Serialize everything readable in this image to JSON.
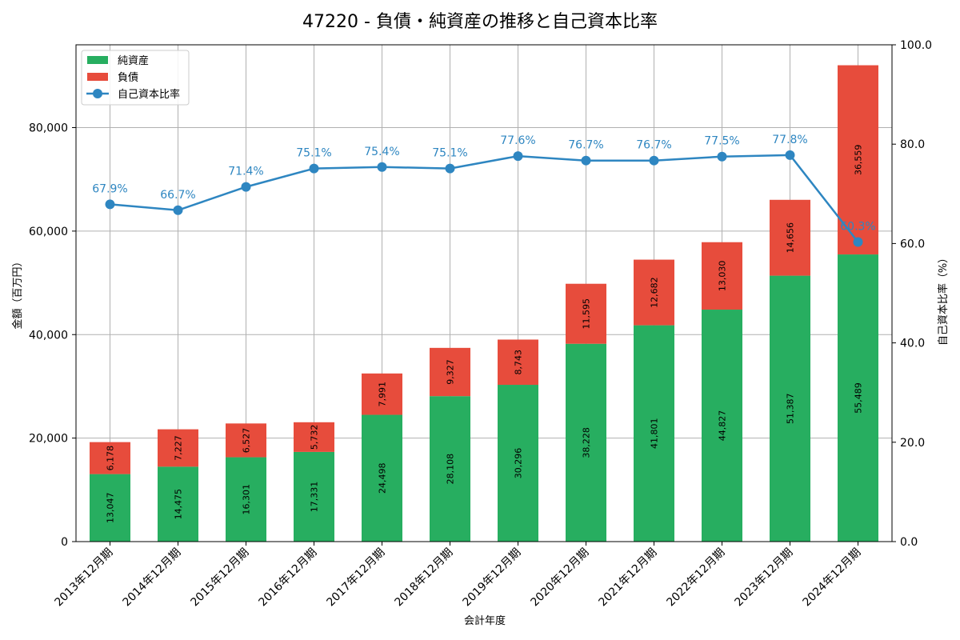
{
  "chart_data": {
    "type": "bar",
    "title": "47220 - 負債・純資産の推移と自己資本比率",
    "xlabel": "会計年度",
    "ylabel": "金額（百万円）",
    "y2label": "自己資本比率（%）",
    "categories": [
      "2013年12月期",
      "2014年12月期",
      "2015年12月期",
      "2016年12月期",
      "2017年12月期",
      "2018年12月期",
      "2019年12月期",
      "2020年12月期",
      "2021年12月期",
      "2022年12月期",
      "2023年12月期",
      "2024年12月期"
    ],
    "series": [
      {
        "name": "純資産",
        "type": "bar",
        "stacked": true,
        "color": "#27ae60",
        "values": [
          13047,
          14475,
          16301,
          17331,
          24498,
          28108,
          30296,
          38228,
          41801,
          44827,
          51387,
          55489
        ],
        "labels": [
          "13,047",
          "14,475",
          "16,301",
          "17,331",
          "24,498",
          "28,108",
          "30,296",
          "38,228",
          "41,801",
          "44,827",
          "51,387",
          "55,489"
        ]
      },
      {
        "name": "負債",
        "type": "bar",
        "stacked": true,
        "color": "#e74c3c",
        "values": [
          6178,
          7227,
          6527,
          5732,
          7991,
          9327,
          8743,
          11595,
          12682,
          13030,
          14656,
          36559
        ],
        "labels": [
          "6,178",
          "7,227",
          "6,527",
          "5,732",
          "7,991",
          "9,327",
          "8,743",
          "11,595",
          "12,682",
          "13,030",
          "14,656",
          "36,559"
        ]
      },
      {
        "name": "自己資本比率",
        "type": "line",
        "axis": "right",
        "color": "#2e86c1",
        "values": [
          67.9,
          66.7,
          71.4,
          75.1,
          75.4,
          75.1,
          77.6,
          76.7,
          76.7,
          77.5,
          77.8,
          60.3
        ],
        "labels": [
          "67.9%",
          "66.7%",
          "71.4%",
          "75.1%",
          "75.4%",
          "75.1%",
          "77.6%",
          "76.7%",
          "76.7%",
          "77.5%",
          "77.8%",
          "60.3%"
        ]
      }
    ],
    "ylim": [
      0,
      96000
    ],
    "yticks": [
      0,
      20000,
      40000,
      60000,
      80000
    ],
    "ytick_labels": [
      "0",
      "20,000",
      "40,000",
      "60,000",
      "80,000"
    ],
    "y2lim": [
      0,
      100
    ],
    "y2ticks": [
      0,
      20,
      40,
      60,
      80,
      100
    ],
    "y2tick_labels": [
      "0.0",
      "20.0",
      "40.0",
      "60.0",
      "80.0",
      "100.0"
    ],
    "grid": true,
    "legend": "top-left"
  }
}
